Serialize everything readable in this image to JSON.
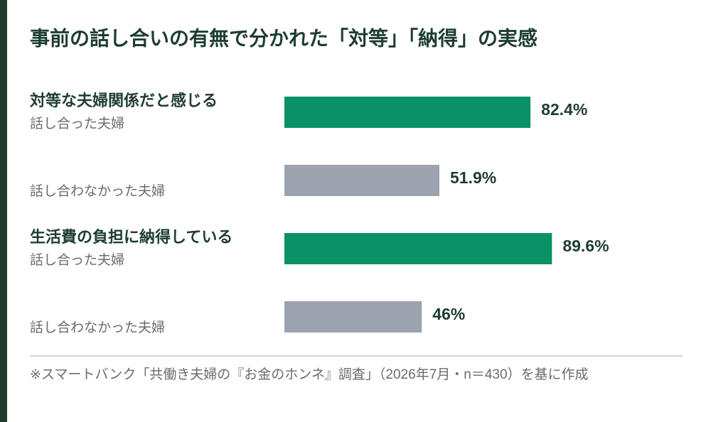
{
  "chart_data": {
    "type": "bar",
    "title": "事前の話し合いの有無で分かれた「対等」「納得」の実感",
    "categories": [
      "対等な夫婦関係だと感じる",
      "生活費の負担に納得している"
    ],
    "series": [
      {
        "name": "話し合った夫婦",
        "color": "#0a9165",
        "values": [
          82.4,
          89.6
        ],
        "value_labels": [
          "82.4%",
          "89.6%"
        ]
      },
      {
        "name": "話し合わなかった夫婦",
        "color": "#9ca3ae",
        "values": [
          51.9,
          46
        ],
        "value_labels": [
          "51.9%",
          "46%"
        ]
      }
    ],
    "xlim": [
      0,
      100
    ],
    "note": "※スマートバンク「共働き夫婦の『お金のホンネ』調査」（2026年7月・n＝430）を基に作成"
  }
}
